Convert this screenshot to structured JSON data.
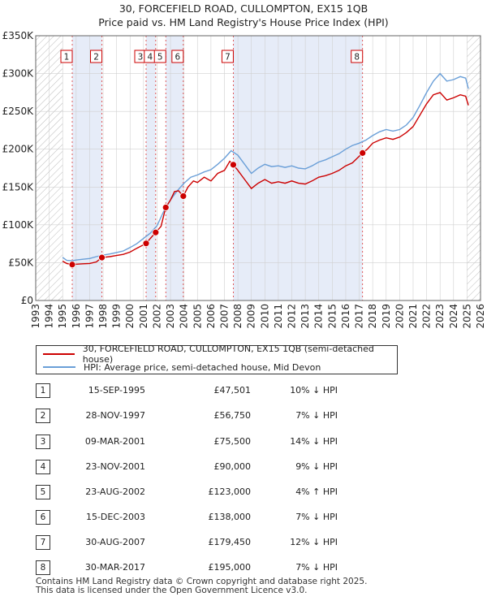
{
  "chart_data": {
    "type": "line",
    "title": "30, FORCEFIELD ROAD, CULLOMPTON, EX15 1QB",
    "subtitle": "Price paid vs. HM Land Registry's House Price Index (HPI)",
    "xlim": [
      1993,
      2026
    ],
    "ylim": [
      0,
      350000
    ],
    "x_ticks": [
      1993,
      1994,
      1995,
      1996,
      1997,
      1998,
      1999,
      2000,
      2001,
      2002,
      2003,
      2004,
      2005,
      2006,
      2007,
      2008,
      2009,
      2010,
      2011,
      2012,
      2013,
      2014,
      2015,
      2016,
      2017,
      2018,
      2019,
      2020,
      2021,
      2022,
      2023,
      2024,
      2025,
      2026
    ],
    "y_ticks": [
      {
        "value": 0,
        "label": "£0"
      },
      {
        "value": 50000,
        "label": "£50K"
      },
      {
        "value": 100000,
        "label": "£100K"
      },
      {
        "value": 150000,
        "label": "£150K"
      },
      {
        "value": 200000,
        "label": "£200K"
      },
      {
        "value": 250000,
        "label": "£250K"
      },
      {
        "value": 300000,
        "label": "£300K"
      },
      {
        "value": 350000,
        "label": "£350K"
      }
    ],
    "hatched_before": 1995.0,
    "hatched_after": 2025.0,
    "series": [
      {
        "name": "30, FORCEFIELD ROAD, CULLOMPTON, EX15 1QB (semi-detached house)",
        "color": "#cc0000",
        "points": [
          [
            1995.0,
            52000
          ],
          [
            1995.3,
            49000
          ],
          [
            1995.71,
            47501
          ],
          [
            1996.0,
            48000
          ],
          [
            1996.5,
            48500
          ],
          [
            1997.0,
            49000
          ],
          [
            1997.5,
            51000
          ],
          [
            1997.91,
            56750
          ],
          [
            1998.5,
            58000
          ],
          [
            1999.0,
            59500
          ],
          [
            1999.5,
            61000
          ],
          [
            2000.0,
            64000
          ],
          [
            2000.5,
            69000
          ],
          [
            2001.19,
            75500
          ],
          [
            2001.5,
            82000
          ],
          [
            2001.9,
            90000
          ],
          [
            2002.3,
            98000
          ],
          [
            2002.65,
            123000
          ],
          [
            2003.0,
            133000
          ],
          [
            2003.3,
            144000
          ],
          [
            2003.6,
            145000
          ],
          [
            2003.95,
            138000
          ],
          [
            2004.3,
            150000
          ],
          [
            2004.7,
            158000
          ],
          [
            2005.0,
            156000
          ],
          [
            2005.5,
            163000
          ],
          [
            2006.0,
            158000
          ],
          [
            2006.5,
            168000
          ],
          [
            2007.0,
            172000
          ],
          [
            2007.4,
            184000
          ],
          [
            2007.66,
            179450
          ],
          [
            2008.0,
            172000
          ],
          [
            2008.5,
            160000
          ],
          [
            2009.0,
            148000
          ],
          [
            2009.5,
            155000
          ],
          [
            2010.0,
            160000
          ],
          [
            2010.5,
            155000
          ],
          [
            2011.0,
            157000
          ],
          [
            2011.5,
            155000
          ],
          [
            2012.0,
            158000
          ],
          [
            2012.5,
            155000
          ],
          [
            2013.0,
            154000
          ],
          [
            2013.5,
            158000
          ],
          [
            2014.0,
            163000
          ],
          [
            2014.5,
            165000
          ],
          [
            2015.0,
            168000
          ],
          [
            2015.5,
            172000
          ],
          [
            2016.0,
            178000
          ],
          [
            2016.5,
            182000
          ],
          [
            2017.25,
            195000
          ],
          [
            2017.6,
            200000
          ],
          [
            2018.0,
            208000
          ],
          [
            2018.5,
            212000
          ],
          [
            2019.0,
            215000
          ],
          [
            2019.5,
            213000
          ],
          [
            2020.0,
            216000
          ],
          [
            2020.5,
            222000
          ],
          [
            2021.0,
            230000
          ],
          [
            2021.5,
            245000
          ],
          [
            2022.0,
            260000
          ],
          [
            2022.5,
            272000
          ],
          [
            2023.0,
            275000
          ],
          [
            2023.5,
            265000
          ],
          [
            2024.0,
            268000
          ],
          [
            2024.5,
            272000
          ],
          [
            2024.9,
            270000
          ],
          [
            2025.1,
            258000
          ]
        ]
      },
      {
        "name": "HPI: Average price, semi-detached house, Mid Devon",
        "color": "#6a9fd8",
        "points": [
          [
            1995.0,
            57000
          ],
          [
            1995.3,
            53000
          ],
          [
            1995.7,
            52500
          ],
          [
            1996.0,
            53500
          ],
          [
            1996.5,
            54500
          ],
          [
            1997.0,
            55500
          ],
          [
            1997.5,
            58000
          ],
          [
            1998.0,
            60000
          ],
          [
            1998.5,
            61500
          ],
          [
            1999.0,
            63500
          ],
          [
            1999.5,
            65500
          ],
          [
            2000.0,
            70000
          ],
          [
            2000.5,
            75000
          ],
          [
            2001.0,
            82000
          ],
          [
            2001.5,
            89000
          ],
          [
            2002.0,
            99000
          ],
          [
            2002.5,
            118000
          ],
          [
            2003.0,
            133000
          ],
          [
            2003.5,
            145000
          ],
          [
            2004.0,
            155000
          ],
          [
            2004.5,
            163000
          ],
          [
            2005.0,
            166000
          ],
          [
            2005.5,
            170000
          ],
          [
            2006.0,
            173000
          ],
          [
            2006.5,
            180000
          ],
          [
            2007.0,
            188000
          ],
          [
            2007.5,
            198000
          ],
          [
            2008.0,
            192000
          ],
          [
            2008.5,
            180000
          ],
          [
            2009.0,
            168000
          ],
          [
            2009.5,
            175000
          ],
          [
            2010.0,
            180000
          ],
          [
            2010.5,
            177000
          ],
          [
            2011.0,
            178000
          ],
          [
            2011.5,
            176000
          ],
          [
            2012.0,
            178000
          ],
          [
            2012.5,
            175000
          ],
          [
            2013.0,
            174000
          ],
          [
            2013.5,
            178000
          ],
          [
            2014.0,
            183000
          ],
          [
            2014.5,
            186000
          ],
          [
            2015.0,
            190000
          ],
          [
            2015.5,
            194000
          ],
          [
            2016.0,
            200000
          ],
          [
            2016.5,
            205000
          ],
          [
            2017.0,
            208000
          ],
          [
            2017.5,
            212000
          ],
          [
            2018.0,
            218000
          ],
          [
            2018.5,
            223000
          ],
          [
            2019.0,
            226000
          ],
          [
            2019.5,
            224000
          ],
          [
            2020.0,
            226000
          ],
          [
            2020.5,
            232000
          ],
          [
            2021.0,
            242000
          ],
          [
            2021.5,
            258000
          ],
          [
            2022.0,
            275000
          ],
          [
            2022.5,
            290000
          ],
          [
            2023.0,
            300000
          ],
          [
            2023.5,
            290000
          ],
          [
            2024.0,
            292000
          ],
          [
            2024.5,
            296000
          ],
          [
            2024.9,
            294000
          ],
          [
            2025.1,
            280000
          ]
        ]
      }
    ],
    "sales": [
      {
        "n": "1",
        "x": 1995.71,
        "price": 47501
      },
      {
        "n": "2",
        "x": 1997.91,
        "price": 56750
      },
      {
        "n": "3",
        "x": 2001.19,
        "price": 75500
      },
      {
        "n": "4",
        "x": 2001.9,
        "price": 90000
      },
      {
        "n": "5",
        "x": 2002.65,
        "price": 123000
      },
      {
        "n": "6",
        "x": 2003.95,
        "price": 138000
      },
      {
        "n": "7",
        "x": 2007.66,
        "price": 179450
      },
      {
        "n": "8",
        "x": 2017.25,
        "price": 195000
      }
    ]
  },
  "legend": [
    {
      "label": "30, FORCEFIELD ROAD, CULLOMPTON, EX15 1QB (semi-detached house)",
      "color": "#cc0000"
    },
    {
      "label": "HPI: Average price, semi-detached house, Mid Devon",
      "color": "#6a9fd8"
    }
  ],
  "transactions": [
    {
      "n": "1",
      "date": "15-SEP-1995",
      "price": "£47,501",
      "hpi": "10% ↓ HPI"
    },
    {
      "n": "2",
      "date": "28-NOV-1997",
      "price": "£56,750",
      "hpi": "7% ↓ HPI"
    },
    {
      "n": "3",
      "date": "09-MAR-2001",
      "price": "£75,500",
      "hpi": "14% ↓ HPI"
    },
    {
      "n": "4",
      "date": "23-NOV-2001",
      "price": "£90,000",
      "hpi": "9% ↓ HPI"
    },
    {
      "n": "5",
      "date": "23-AUG-2002",
      "price": "£123,000",
      "hpi": "4% ↑ HPI"
    },
    {
      "n": "6",
      "date": "15-DEC-2003",
      "price": "£138,000",
      "hpi": "7% ↓ HPI"
    },
    {
      "n": "7",
      "date": "30-AUG-2007",
      "price": "£179,450",
      "hpi": "12% ↓ HPI"
    },
    {
      "n": "8",
      "date": "30-MAR-2017",
      "price": "£195,000",
      "hpi": "7% ↓ HPI"
    }
  ],
  "footer": {
    "line1": "Contains HM Land Registry data © Crown copyright and database right 2025.",
    "line2": "This data is licensed under the Open Government Licence v3.0."
  }
}
